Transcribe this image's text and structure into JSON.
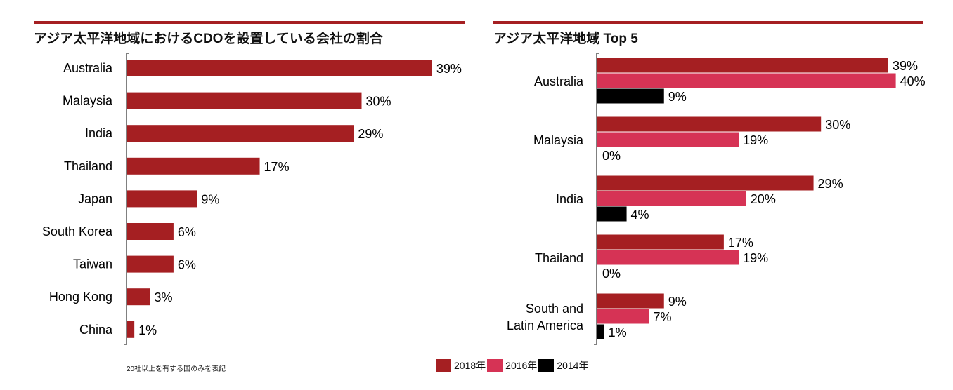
{
  "chart_data": [
    {
      "type": "bar",
      "orientation": "horizontal",
      "title": "アジア太平洋地域におけるCDOを設置している会社の割合",
      "categories": [
        "Australia",
        "Malaysia",
        "India",
        "Thailand",
        "Japan",
        "South Korea",
        "Taiwan",
        "Hong Kong",
        "China"
      ],
      "values": [
        39,
        30,
        29,
        17,
        9,
        6,
        6,
        3,
        1
      ],
      "unit": "%",
      "color": "#a51f22",
      "note": "20社以上を有する国のみを表記"
    },
    {
      "type": "bar",
      "orientation": "horizontal",
      "title": "アジア太平洋地域 Top 5",
      "categories": [
        "Australia",
        "Malaysia",
        "India",
        "Thailand",
        "South and\nLatin America"
      ],
      "series": [
        {
          "name": "2018年",
          "values": [
            39,
            30,
            29,
            17,
            9
          ],
          "color": "#a51f22"
        },
        {
          "name": "2016年",
          "values": [
            40,
            19,
            20,
            19,
            7
          ],
          "color": "#d63355"
        },
        {
          "name": "2014年",
          "values": [
            9,
            0,
            4,
            0,
            1
          ],
          "color": "#000000"
        }
      ],
      "unit": "%",
      "legend": "bottom"
    }
  ]
}
